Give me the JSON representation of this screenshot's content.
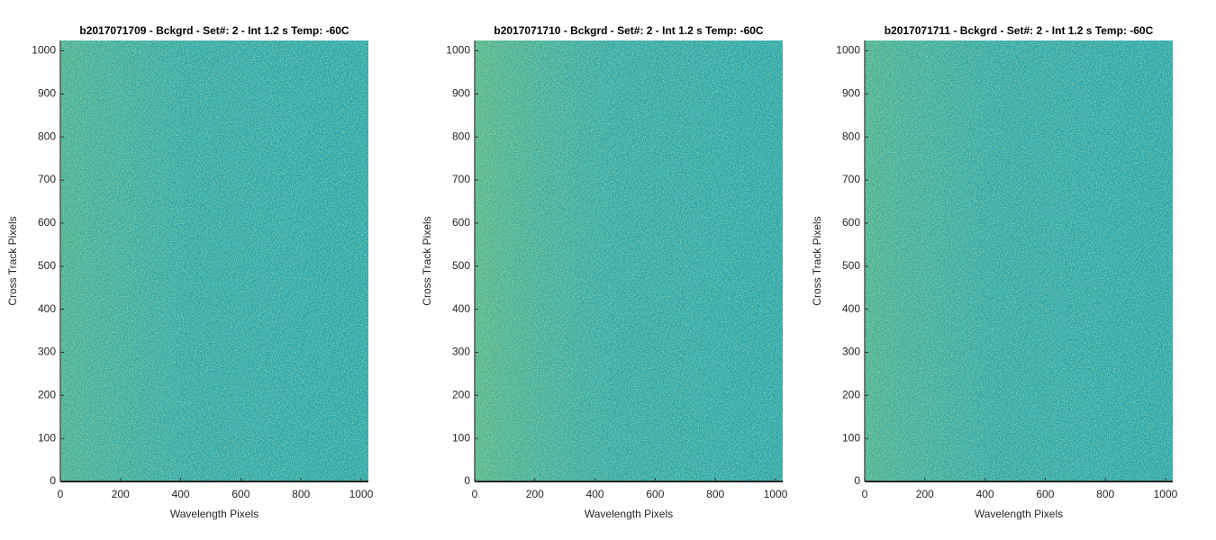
{
  "chart_data": [
    {
      "type": "heatmap",
      "title": "b2017071709 - Bckgrd - Set#: 2 - Int 1.2 s Temp: -60C",
      "xlabel": "Wavelength Pixels",
      "ylabel": "Cross Track Pixels",
      "xlim": [
        0,
        1024
      ],
      "ylim": [
        0,
        1024
      ],
      "xticks": [
        0,
        200,
        400,
        600,
        800,
        1000
      ],
      "yticks": [
        0,
        100,
        200,
        300,
        400,
        500,
        600,
        700,
        800,
        900,
        1000
      ]
    },
    {
      "type": "heatmap",
      "title": "b2017071710 - Bckgrd - Set#: 2 - Int 1.2 s Temp: -60C",
      "xlabel": "Wavelength Pixels",
      "ylabel": "Cross Track Pixels",
      "xlim": [
        0,
        1024
      ],
      "ylim": [
        0,
        1024
      ],
      "xticks": [
        0,
        200,
        400,
        600,
        800,
        1000
      ],
      "yticks": [
        0,
        100,
        200,
        300,
        400,
        500,
        600,
        700,
        800,
        900,
        1000
      ]
    },
    {
      "type": "heatmap",
      "title": "b2017071711 - Bckgrd - Set#: 2 - Int 1.2 s Temp: -60C",
      "xlabel": "Wavelength Pixels",
      "ylabel": "Cross Track Pixels",
      "xlim": [
        0,
        1024
      ],
      "ylim": [
        0,
        1024
      ],
      "xticks": [
        0,
        200,
        400,
        600,
        800,
        1000
      ],
      "yticks": [
        0,
        100,
        200,
        300,
        400,
        500,
        600,
        700,
        800,
        900,
        1000
      ]
    }
  ]
}
